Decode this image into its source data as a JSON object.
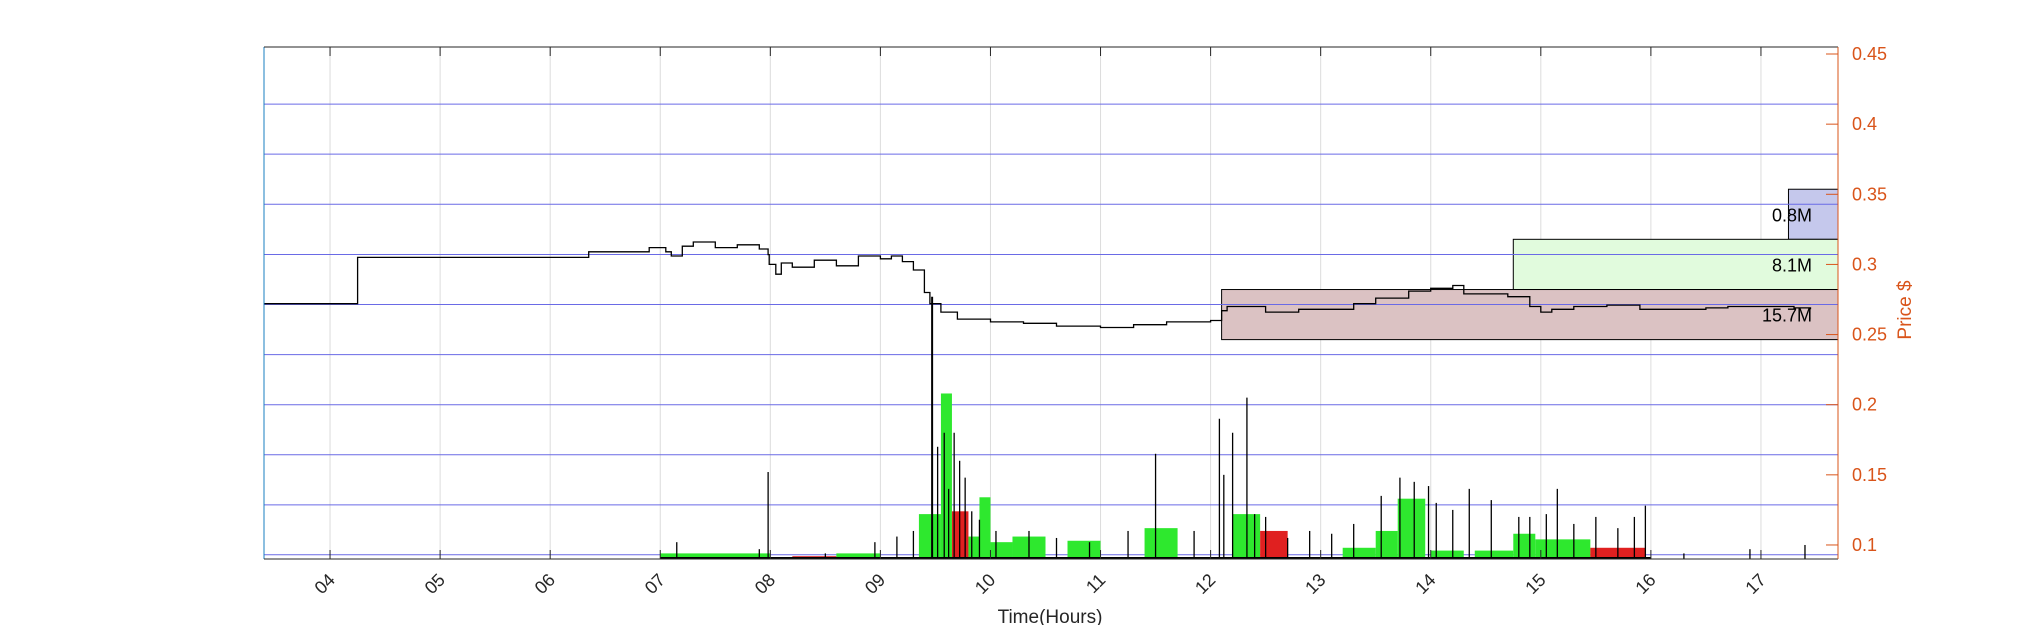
{
  "chart_data": {
    "type": "line",
    "title": "",
    "xlabel": "Time(Hours)",
    "ylabel": "Price $",
    "xlim": [
      3.4,
      17.7
    ],
    "ylim": [
      0.09,
      0.455
    ],
    "y_axis_position": "right",
    "grid": true,
    "x_ticks": [
      {
        "value": 4,
        "label": "04"
      },
      {
        "value": 5,
        "label": "05"
      },
      {
        "value": 6,
        "label": "06"
      },
      {
        "value": 7,
        "label": "07"
      },
      {
        "value": 8,
        "label": "08"
      },
      {
        "value": 9,
        "label": "09"
      },
      {
        "value": 10,
        "label": "10"
      },
      {
        "value": 11,
        "label": "11"
      },
      {
        "value": 12,
        "label": "12"
      },
      {
        "value": 13,
        "label": "13"
      },
      {
        "value": 14,
        "label": "14"
      },
      {
        "value": 15,
        "label": "15"
      },
      {
        "value": 16,
        "label": "16"
      },
      {
        "value": 17,
        "label": "17"
      }
    ],
    "y_ticks": [
      {
        "value": 0.1,
        "label": "0.1"
      },
      {
        "value": 0.15,
        "label": "0.15"
      },
      {
        "value": 0.2,
        "label": "0.2"
      },
      {
        "value": 0.25,
        "label": "0.25"
      },
      {
        "value": 0.3,
        "label": "0.3"
      },
      {
        "value": 0.35,
        "label": "0.35"
      },
      {
        "value": 0.4,
        "label": "0.4"
      },
      {
        "value": 0.45,
        "label": "0.45"
      }
    ],
    "price_levels": [
      0.093,
      0.1286,
      0.1643,
      0.2,
      0.2357,
      0.2714,
      0.3071,
      0.3429,
      0.3786,
      0.4143
    ],
    "price_series": {
      "x": [
        3.4,
        4.25,
        4.25,
        6.3,
        6.35,
        6.9,
        7.05,
        7.1,
        7.2,
        7.3,
        7.5,
        7.7,
        7.9,
        7.98,
        7.99,
        8.05,
        8.1,
        8.2,
        8.4,
        8.6,
        8.8,
        9.0,
        9.1,
        9.2,
        9.3,
        9.4,
        9.45,
        9.55,
        9.7,
        10.0,
        10.3,
        10.6,
        11.0,
        11.3,
        11.6,
        12.0,
        12.1,
        12.15,
        12.3,
        12.5,
        12.8,
        13.1,
        13.3,
        13.5,
        13.8,
        14.0,
        14.2,
        14.3,
        14.5,
        14.7,
        14.9,
        15.0,
        15.1,
        15.3,
        15.6,
        15.9,
        16.2,
        16.5,
        16.7,
        16.9,
        17.1,
        17.3,
        17.45
      ],
      "y": [
        0.272,
        0.272,
        0.305,
        0.305,
        0.309,
        0.312,
        0.309,
        0.306,
        0.313,
        0.316,
        0.312,
        0.314,
        0.311,
        0.307,
        0.3,
        0.293,
        0.301,
        0.298,
        0.303,
        0.299,
        0.306,
        0.304,
        0.306,
        0.302,
        0.296,
        0.28,
        0.272,
        0.266,
        0.261,
        0.259,
        0.258,
        0.256,
        0.255,
        0.257,
        0.259,
        0.26,
        0.267,
        0.27,
        0.27,
        0.266,
        0.268,
        0.268,
        0.272,
        0.276,
        0.281,
        0.283,
        0.285,
        0.279,
        0.279,
        0.277,
        0.27,
        0.266,
        0.268,
        0.27,
        0.271,
        0.268,
        0.268,
        0.269,
        0.27,
        0.27,
        0.27,
        0.269,
        0.268
      ]
    },
    "drop_spike": {
      "x": 9.47,
      "top": 0.277
    },
    "volume_boxes": [
      {
        "label": "0.8M",
        "x0": 17.25,
        "x1": 17.7,
        "y0": 0.3179,
        "y1": 0.3536,
        "color": "#c5c8ec"
      },
      {
        "label": "8.1M",
        "x0": 14.75,
        "x1": 17.7,
        "y0": 0.2821,
        "y1": 0.3179,
        "color": "#e1fbdd"
      },
      {
        "label": "15.7M",
        "x0": 12.1,
        "x1": 17.7,
        "y0": 0.2464,
        "y1": 0.2821,
        "color": "#dbc2c3"
      }
    ],
    "volume_buckets": [
      {
        "x0": 7.0,
        "x1": 8.0,
        "v": 0.004,
        "color": "#2ee82e"
      },
      {
        "x0": 8.2,
        "x1": 8.6,
        "v": 0.002,
        "color": "#e02020"
      },
      {
        "x0": 8.6,
        "x1": 9.0,
        "v": 0.004,
        "color": "#2ee82e"
      },
      {
        "x0": 9.35,
        "x1": 9.55,
        "v": 0.032,
        "color": "#2ee82e"
      },
      {
        "x0": 9.55,
        "x1": 9.65,
        "v": 0.118,
        "color": "#2ee82e"
      },
      {
        "x0": 9.65,
        "x1": 9.8,
        "v": 0.034,
        "color": "#e02020"
      },
      {
        "x0": 9.8,
        "x1": 9.9,
        "v": 0.016,
        "color": "#2ee82e"
      },
      {
        "x0": 9.9,
        "x1": 10.0,
        "v": 0.044,
        "color": "#2ee82e"
      },
      {
        "x0": 10.0,
        "x1": 10.2,
        "v": 0.012,
        "color": "#2ee82e"
      },
      {
        "x0": 10.2,
        "x1": 10.5,
        "v": 0.016,
        "color": "#2ee82e"
      },
      {
        "x0": 10.7,
        "x1": 11.0,
        "v": 0.013,
        "color": "#2ee82e"
      },
      {
        "x0": 11.4,
        "x1": 11.7,
        "v": 0.022,
        "color": "#2ee82e"
      },
      {
        "x0": 12.2,
        "x1": 12.45,
        "v": 0.032,
        "color": "#2ee82e"
      },
      {
        "x0": 12.45,
        "x1": 12.7,
        "v": 0.02,
        "color": "#e02020"
      },
      {
        "x0": 13.2,
        "x1": 13.5,
        "v": 0.008,
        "color": "#2ee82e"
      },
      {
        "x0": 13.5,
        "x1": 13.7,
        "v": 0.02,
        "color": "#2ee82e"
      },
      {
        "x0": 13.7,
        "x1": 13.95,
        "v": 0.043,
        "color": "#2ee82e"
      },
      {
        "x0": 14.0,
        "x1": 14.3,
        "v": 0.006,
        "color": "#2ee82e"
      },
      {
        "x0": 14.4,
        "x1": 14.75,
        "v": 0.006,
        "color": "#2ee82e"
      },
      {
        "x0": 14.75,
        "x1": 14.95,
        "v": 0.018,
        "color": "#2ee82e"
      },
      {
        "x0": 14.95,
        "x1": 15.45,
        "v": 0.014,
        "color": "#2ee82e"
      },
      {
        "x0": 15.45,
        "x1": 15.95,
        "v": 0.008,
        "color": "#e02020"
      }
    ],
    "volume_spikes": [
      {
        "x": 7.15,
        "v": 0.012
      },
      {
        "x": 7.9,
        "v": 0.007
      },
      {
        "x": 7.98,
        "v": 0.062
      },
      {
        "x": 8.5,
        "v": 0.004
      },
      {
        "x": 8.95,
        "v": 0.012
      },
      {
        "x": 9.15,
        "v": 0.016
      },
      {
        "x": 9.3,
        "v": 0.02
      },
      {
        "x": 9.47,
        "v": 0.177
      },
      {
        "x": 9.52,
        "v": 0.08
      },
      {
        "x": 9.58,
        "v": 0.09
      },
      {
        "x": 9.62,
        "v": 0.05
      },
      {
        "x": 9.67,
        "v": 0.09
      },
      {
        "x": 9.72,
        "v": 0.07
      },
      {
        "x": 9.77,
        "v": 0.058
      },
      {
        "x": 9.83,
        "v": 0.034
      },
      {
        "x": 9.9,
        "v": 0.028
      },
      {
        "x": 10.05,
        "v": 0.02
      },
      {
        "x": 10.35,
        "v": 0.02
      },
      {
        "x": 10.6,
        "v": 0.015
      },
      {
        "x": 10.9,
        "v": 0.012
      },
      {
        "x": 11.25,
        "v": 0.02
      },
      {
        "x": 11.5,
        "v": 0.075
      },
      {
        "x": 11.85,
        "v": 0.02
      },
      {
        "x": 12.08,
        "v": 0.1
      },
      {
        "x": 12.12,
        "v": 0.06
      },
      {
        "x": 12.2,
        "v": 0.09
      },
      {
        "x": 12.33,
        "v": 0.115
      },
      {
        "x": 12.4,
        "v": 0.032
      },
      {
        "x": 12.5,
        "v": 0.03
      },
      {
        "x": 12.7,
        "v": 0.015
      },
      {
        "x": 12.9,
        "v": 0.02
      },
      {
        "x": 13.1,
        "v": 0.018
      },
      {
        "x": 13.3,
        "v": 0.025
      },
      {
        "x": 13.55,
        "v": 0.045
      },
      {
        "x": 13.72,
        "v": 0.058
      },
      {
        "x": 13.85,
        "v": 0.055
      },
      {
        "x": 13.98,
        "v": 0.052
      },
      {
        "x": 14.05,
        "v": 0.04
      },
      {
        "x": 14.2,
        "v": 0.035
      },
      {
        "x": 14.35,
        "v": 0.05
      },
      {
        "x": 14.55,
        "v": 0.042
      },
      {
        "x": 14.8,
        "v": 0.03
      },
      {
        "x": 14.9,
        "v": 0.03
      },
      {
        "x": 15.05,
        "v": 0.032
      },
      {
        "x": 15.15,
        "v": 0.05
      },
      {
        "x": 15.3,
        "v": 0.025
      },
      {
        "x": 15.5,
        "v": 0.03
      },
      {
        "x": 15.7,
        "v": 0.022
      },
      {
        "x": 15.85,
        "v": 0.03
      },
      {
        "x": 15.95,
        "v": 0.038
      },
      {
        "x": 16.3,
        "v": 0.004
      },
      {
        "x": 16.9,
        "v": 0.007
      },
      {
        "x": 17.4,
        "v": 0.01
      }
    ],
    "colors": {
      "axes_left": "#1a7fc1",
      "y_axis": "#d9541a",
      "grid": "#dcdcdc",
      "level_line": "#6a6ae6",
      "price_line": "#000000"
    }
  }
}
